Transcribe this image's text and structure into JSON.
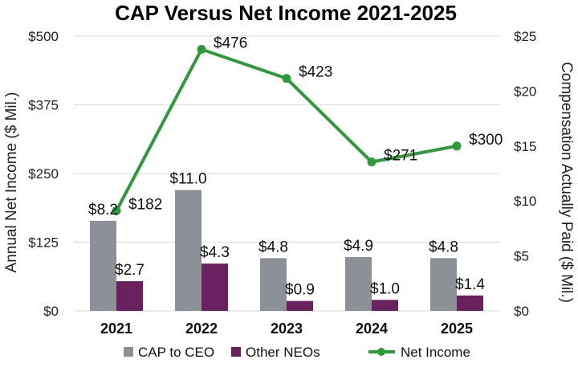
{
  "chart_data": {
    "type": "bar",
    "title": "CAP Versus Net Income 2021-2025",
    "categories": [
      "2021",
      "2022",
      "2023",
      "2024",
      "2025"
    ],
    "ylabel_left": "Annual Net Income ($ Mil.)",
    "ylabel_right": "Compensation Actually Paid ($ Mil.)",
    "ylim_left": [
      0,
      500
    ],
    "ylim_right": [
      0,
      25
    ],
    "yticks_left": [
      "$0",
      "$125",
      "$250",
      "$375",
      "$500"
    ],
    "yticks_right": [
      "$0",
      "$5",
      "$10",
      "$15",
      "$20",
      "$25"
    ],
    "grid": true,
    "legend_position": "bottom",
    "series": [
      {
        "name": "CAP to CEO",
        "type": "bar",
        "axis": "right",
        "color": "#8c9198",
        "values": [
          8.2,
          11.0,
          4.8,
          4.9,
          4.8
        ],
        "labels": [
          "$8.2",
          "$11.0",
          "$4.8",
          "$4.9",
          "$4.8"
        ]
      },
      {
        "name": "Other NEOs",
        "type": "bar",
        "axis": "right",
        "color": "#6b2160",
        "values": [
          2.7,
          4.3,
          0.9,
          1.0,
          1.4
        ],
        "labels": [
          "$2.7",
          "$4.3",
          "$0.9",
          "$1.0",
          "$1.4"
        ]
      },
      {
        "name": "Net Income",
        "type": "line",
        "axis": "left",
        "color": "#2e9b3b",
        "values": [
          182,
          476,
          423,
          271,
          300
        ],
        "labels": [
          "$182",
          "$476",
          "$423",
          "$271",
          "$300"
        ]
      }
    ]
  }
}
